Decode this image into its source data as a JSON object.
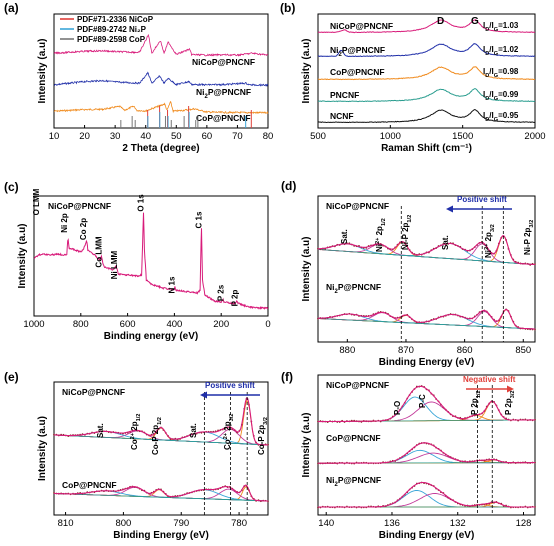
{
  "chart_data": [
    {
      "panel": "(a)",
      "type": "line",
      "xlabel": "2 Theta (degree)",
      "ylabel": "Intensity (a.u)",
      "xlim": [
        10,
        80
      ],
      "xticks": [
        10,
        20,
        30,
        40,
        50,
        60,
        70,
        80
      ],
      "legend": [
        {
          "label": "PDF#71-2336 NiCoP",
          "color": "#e0403a"
        },
        {
          "label": "PDF#89-2742 Ni₂P",
          "color": "#3aa6d8"
        },
        {
          "label": "PDF#89-2598 CoP",
          "color": "#777777"
        }
      ],
      "series": [
        {
          "name": "NiCoP@PNCNF",
          "color": "#d81b7a",
          "offset": 2,
          "x": [
            10,
            20,
            26,
            30,
            38,
            40.9,
            42,
            44.8,
            46,
            47.4,
            50,
            54.3,
            55,
            60,
            66,
            70,
            74.8,
            80
          ],
          "y": [
            0.3,
            0.42,
            0.45,
            0.4,
            0.35,
            1.45,
            0.3,
            1.1,
            0.3,
            1.0,
            0.22,
            0.55,
            0.22,
            0.18,
            0.2,
            0.18,
            0.3,
            0.18
          ]
        },
        {
          "name": "Ni₂P@PNCNF",
          "color": "#1f2ea8",
          "offset": 1,
          "x": [
            10,
            20,
            26,
            30,
            38,
            40.7,
            42,
            44.6,
            46,
            47.3,
            50,
            54.2,
            55,
            60,
            66,
            72.7,
            74,
            80
          ],
          "y": [
            0.2,
            0.4,
            0.46,
            0.38,
            0.3,
            0.95,
            0.3,
            0.75,
            0.3,
            0.6,
            0.22,
            0.4,
            0.22,
            0.2,
            0.22,
            0.3,
            0.2,
            0.18
          ]
        },
        {
          "name": "CoP@PNCNF",
          "color": "#f08a1c",
          "offset": 0,
          "x": [
            10,
            20,
            26,
            31.6,
            33,
            35.3,
            36.3,
            37,
            40,
            46.2,
            47,
            48.1,
            49,
            52.3,
            56.1,
            56.8,
            60,
            66,
            80
          ],
          "y": [
            0.3,
            0.4,
            0.42,
            0.6,
            0.35,
            0.55,
            0.6,
            0.35,
            0.32,
            0.75,
            0.35,
            0.9,
            0.3,
            0.35,
            0.45,
            0.4,
            0.25,
            0.22,
            0.2
          ]
        }
      ],
      "reference_lines": [
        {
          "name": "NiCoP",
          "color": "#e0403a",
          "x": [
            40.9,
            44.8,
            47.4,
            54.3,
            74.8
          ]
        },
        {
          "name": "Ni₂P",
          "color": "#3aa6d8",
          "x": [
            40.7,
            44.6,
            47.3,
            54.2,
            72.7
          ]
        },
        {
          "name": "CoP",
          "color": "#777777",
          "x": [
            31.6,
            35.3,
            36.3,
            46.2,
            48.1,
            52.3,
            56.1,
            56.8
          ]
        }
      ]
    },
    {
      "panel": "(b)",
      "type": "line",
      "xlabel": "Raman Shift (cm⁻¹)",
      "ylabel": "Intensity (a.u)",
      "xlim": [
        500,
        2000
      ],
      "xticks": [
        500,
        1000,
        1500,
        2000
      ],
      "band_labels": [
        "D",
        "G"
      ],
      "band_positions": [
        1350,
        1585
      ],
      "series": [
        {
          "name": "NiCoP@PNCNF",
          "ratio": "I_D/I_G=1.03",
          "color": "#d81b7a",
          "offset": 4
        },
        {
          "name": "Ni₂P@PNCNF",
          "ratio": "I_D/I_G=1.02",
          "color": "#1f2ea8",
          "offset": 3
        },
        {
          "name": "CoP@PNCNF",
          "ratio": "I_D/I_G=0.98",
          "color": "#f08a1c",
          "offset": 2
        },
        {
          "name": "PNCNF",
          "ratio": "I_D/I_G=0.99",
          "color": "#2a9d8f",
          "offset": 1
        },
        {
          "name": "NCNF",
          "ratio": "I_D/I_G=0.95",
          "color": "#111111",
          "offset": 0
        }
      ]
    },
    {
      "panel": "(c)",
      "type": "line",
      "xlabel": "Binding energy (eV)",
      "ylabel": "Intensity (a.u)",
      "xlim": [
        1000,
        0
      ],
      "xticks": [
        1000,
        800,
        600,
        400,
        200,
        0
      ],
      "series": [
        {
          "name": "NiCoP@PNCNF",
          "color": "#d81b7a",
          "x": [
            1000,
            980,
            960,
            930,
            900,
            870,
            860,
            855,
            850,
            800,
            790,
            780,
            775,
            770,
            740,
            720,
            712,
            705,
            700,
            660,
            650,
            645,
            640,
            560,
            540,
            532,
            528,
            520,
            500,
            450,
            420,
            400,
            398,
            395,
            330,
            300,
            290,
            284.5,
            280,
            270,
            230,
            200,
            192,
            188,
            160,
            140,
            133,
            129,
            110,
            80,
            40,
            0
          ],
          "y": [
            0.52,
            0.55,
            0.56,
            0.55,
            0.56,
            0.55,
            0.56,
            0.73,
            0.62,
            0.58,
            0.6,
            0.66,
            0.7,
            0.6,
            0.55,
            0.5,
            0.54,
            0.46,
            0.43,
            0.4,
            0.44,
            0.41,
            0.36,
            0.34,
            0.35,
            0.97,
            0.6,
            0.3,
            0.26,
            0.22,
            0.21,
            0.2,
            0.23,
            0.2,
            0.18,
            0.17,
            0.2,
            0.88,
            0.3,
            0.15,
            0.09,
            0.08,
            0.11,
            0.08,
            0.07,
            0.06,
            0.1,
            0.07,
            0.05,
            0.03,
            0.02,
            0.02
          ]
        }
      ],
      "annotations": [
        "O LMM",
        "Ni 2p",
        "Co 2p",
        "Co LMM",
        "Ni LMM",
        "O 1s",
        "C 1s",
        "N 1s",
        "P 2s",
        "P 2p"
      ]
    },
    {
      "panel": "(d)",
      "type": "line",
      "xlabel": "Binding Energy (eV)",
      "ylabel": "Intensity (a.u)",
      "xlim": [
        885,
        848
      ],
      "xticks": [
        880,
        870,
        860,
        850
      ],
      "shift_label": "Positive shift",
      "series": [
        {
          "name": "NiCoP@PNCNF"
        },
        {
          "name": "Ni₂P@PNCNF"
        }
      ],
      "annotations": [
        "Sat.",
        "Ni²⁺ 2p1/2",
        "Ni-P 2p1/2",
        "Sat.",
        "Ni²⁺ 2p3/2",
        "Ni-P 2p3/2"
      ],
      "reference_lines": [
        870.8,
        857.0,
        853.4
      ]
    },
    {
      "panel": "(e)",
      "type": "line",
      "xlabel": "Binding Energy (eV)",
      "ylabel": "Intensity (a.u)",
      "xlim": [
        812,
        775
      ],
      "xticks": [
        810,
        800,
        790,
        780
      ],
      "shift_label": "Positive shift",
      "series": [
        {
          "name": "NiCoP@PNCNF"
        },
        {
          "name": "CoP@PNCNF"
        }
      ],
      "annotations": [
        "Sat.",
        "Co²⁺ 2p1/2",
        "Co-P 2p1/2",
        "Sat.",
        "Co²⁺ 2p3/2",
        "Co-P 2p3/2"
      ],
      "reference_lines": [
        786.0,
        781.5,
        778.6
      ]
    },
    {
      "panel": "(f)",
      "type": "line",
      "xlabel": "Binding Energy (eV)",
      "ylabel": "Intensity (a.u)",
      "xlim": [
        140.5,
        127.3
      ],
      "xticks": [
        140,
        136,
        132,
        128
      ],
      "shift_label": "Negative shift",
      "series": [
        {
          "name": "NiCoP@PNCNF"
        },
        {
          "name": "CoP@PNCNF"
        },
        {
          "name": "Ni₂P@PNCNF"
        }
      ],
      "annotations": [
        "P-O",
        "P-C",
        "P 2p1/2",
        "P 2p3/2"
      ],
      "reference_lines": [
        130.8,
        129.9
      ]
    }
  ]
}
